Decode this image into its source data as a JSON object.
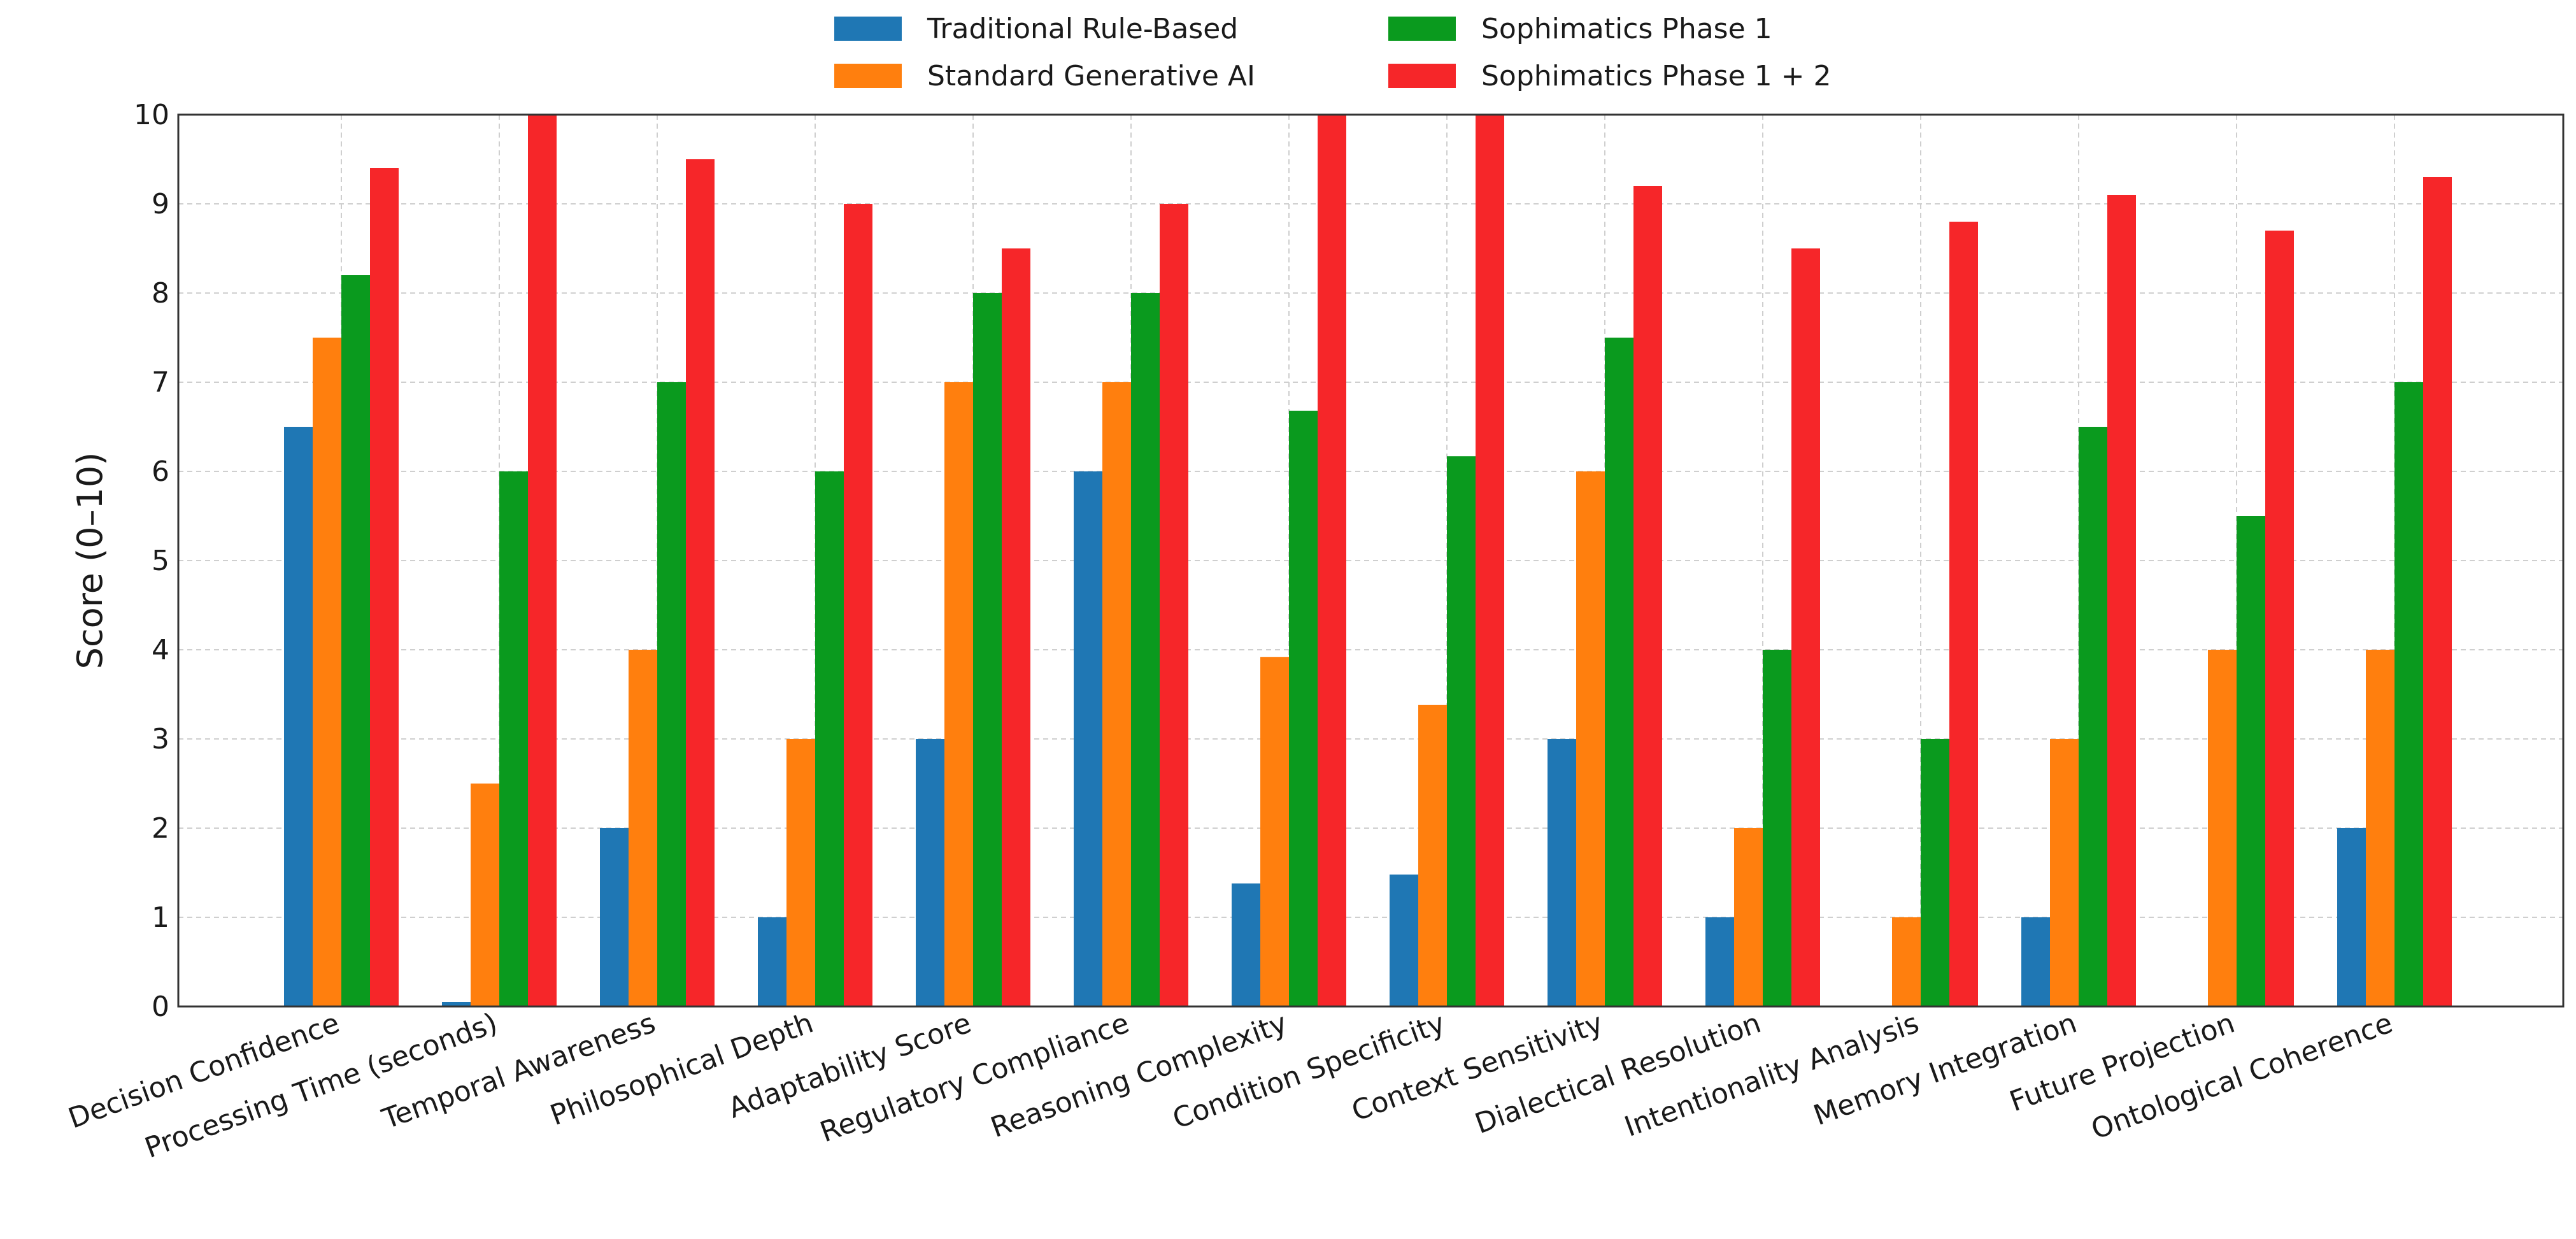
{
  "chart_data": {
    "type": "bar",
    "title": "",
    "xlabel": "",
    "ylabel": "Score (0–10)",
    "ylim": [
      0,
      10
    ],
    "yticks": [
      0,
      1,
      2,
      3,
      4,
      5,
      6,
      7,
      8,
      9,
      10
    ],
    "grid": true,
    "legend_position": "top-center",
    "categories": [
      "Decision Confidence",
      "Processing Time (seconds)",
      "Temporal Awareness",
      "Philosophical Depth",
      "Adaptability Score",
      "Regulatory Compliance",
      "Reasoning Complexity",
      "Condition Specificity",
      "Context Sensitivity",
      "Dialectical Resolution",
      "Intentionality Analysis",
      "Memory Integration",
      "Future Projection",
      "Ontological Coherence"
    ],
    "series": [
      {
        "name": "Traditional Rule-Based",
        "color": "#1f77b4",
        "values": [
          6.5,
          0.05,
          2,
          1,
          3,
          6,
          1.38,
          1.48,
          3,
          1,
          0,
          1,
          0,
          2
        ]
      },
      {
        "name": "Standard Generative AI",
        "color": "#ff7f0e",
        "values": [
          7.5,
          2.5,
          4,
          3,
          7,
          7,
          3.92,
          3.38,
          6,
          2,
          1,
          3,
          4,
          4
        ]
      },
      {
        "name": "Sophimatics Phase 1",
        "color": "#0a9a1e",
        "values": [
          8.2,
          6,
          7,
          6,
          8,
          8,
          6.68,
          6.17,
          7.5,
          4,
          3,
          6.5,
          5.5,
          7
        ]
      },
      {
        "name": "Sophimatics Phase 1 + 2",
        "color": "#f62629",
        "values": [
          9.4,
          10,
          9.5,
          9,
          8.5,
          9,
          10,
          10,
          9.2,
          8.5,
          8.8,
          9.1,
          8.7,
          9.3
        ]
      }
    ]
  }
}
